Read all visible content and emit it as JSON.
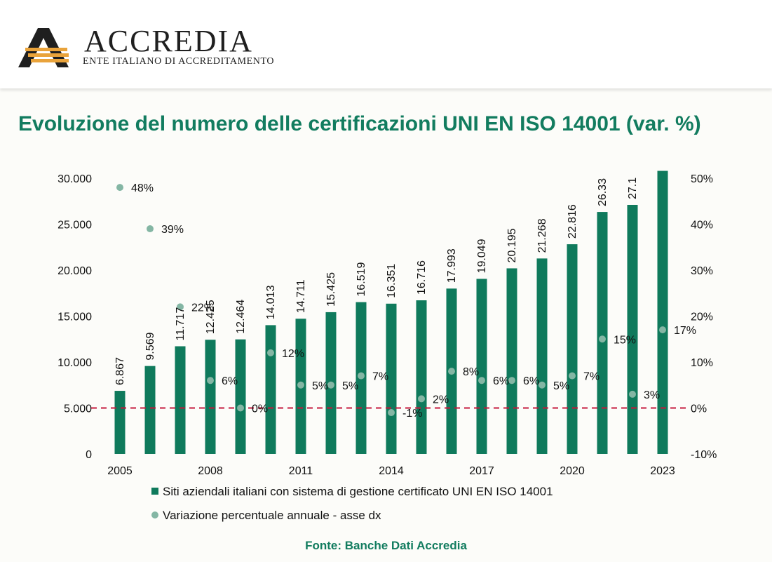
{
  "brand": {
    "name": "ACCREDIA",
    "subtitle": "ENTE ITALIANO DI ACCREDITAMENTO",
    "colors": {
      "stripe_orange": "#e9a33b",
      "mark_dark": "#1f1f1f"
    }
  },
  "title": "Evoluzione del numero delle certificazioni UNI EN ISO 14001 (var. %)",
  "source": "Fonte: Banche Dati Accredia",
  "chart_data": {
    "type": "bar",
    "categories": [
      2005,
      2006,
      2007,
      2008,
      2009,
      2010,
      2011,
      2012,
      2013,
      2014,
      2015,
      2016,
      2017,
      2018,
      2019,
      2020,
      2021,
      2022,
      2023
    ],
    "x_tick_labels": [
      "2005",
      "2008",
      "2011",
      "2014",
      "2017",
      "2020",
      "2023"
    ],
    "x_tick_years": [
      2005,
      2008,
      2011,
      2014,
      2017,
      2020,
      2023
    ],
    "y_left": {
      "min": 0,
      "max": 30000,
      "step": 5000,
      "tick_labels": [
        "0",
        "5.000",
        "10.000",
        "15.000",
        "20.000",
        "25.000",
        "30.000"
      ]
    },
    "y_right": {
      "min": -0.1,
      "max": 0.5,
      "step": 0.1,
      "tick_labels": [
        "-10%",
        "0%",
        "10%",
        "20%",
        "30%",
        "40%",
        "50%"
      ]
    },
    "series": [
      {
        "name": "Siti aziendali italiani con sistema di gestione certificato UNI EN ISO 14001",
        "type": "bar",
        "axis": "left",
        "color": "#0f7a5c",
        "values": [
          6867,
          9569,
          11717,
          12425,
          12464,
          14013,
          14711,
          15425,
          16519,
          16351,
          16716,
          17993,
          19049,
          20195,
          21268,
          22816,
          26330,
          27100,
          30800
        ],
        "labels": [
          "6.867",
          "9.569",
          "11.717",
          "12.425",
          "12.464",
          "14.013",
          "14.711",
          "15.425",
          "16.519",
          "16.351",
          "16.716",
          "17.993",
          "19.049",
          "20.195",
          "21.268",
          "22.816",
          "26.33",
          "27.1",
          ""
        ]
      },
      {
        "name": "Variazione percentuale annuale - asse dx",
        "type": "scatter",
        "axis": "right",
        "color": "#84b6a4",
        "values": [
          0.48,
          0.39,
          0.22,
          0.06,
          0.0,
          0.12,
          0.05,
          0.05,
          0.07,
          -0.01,
          0.02,
          0.08,
          0.06,
          0.06,
          0.05,
          0.07,
          0.15,
          0.03,
          0.17
        ],
        "labels": [
          "48%",
          "39%",
          "22%",
          "6%",
          "0%",
          "12%",
          "5%",
          "5%",
          "7%",
          "-1%",
          "2%",
          "8%",
          "6%",
          "6%",
          "5%",
          "7%",
          "15%",
          "3%",
          "17%"
        ]
      }
    ],
    "reference_line": {
      "axis": "right",
      "value": 0,
      "style": "dashed",
      "color": "#c4163a"
    },
    "grid": false,
    "legend_position": "bottom"
  }
}
